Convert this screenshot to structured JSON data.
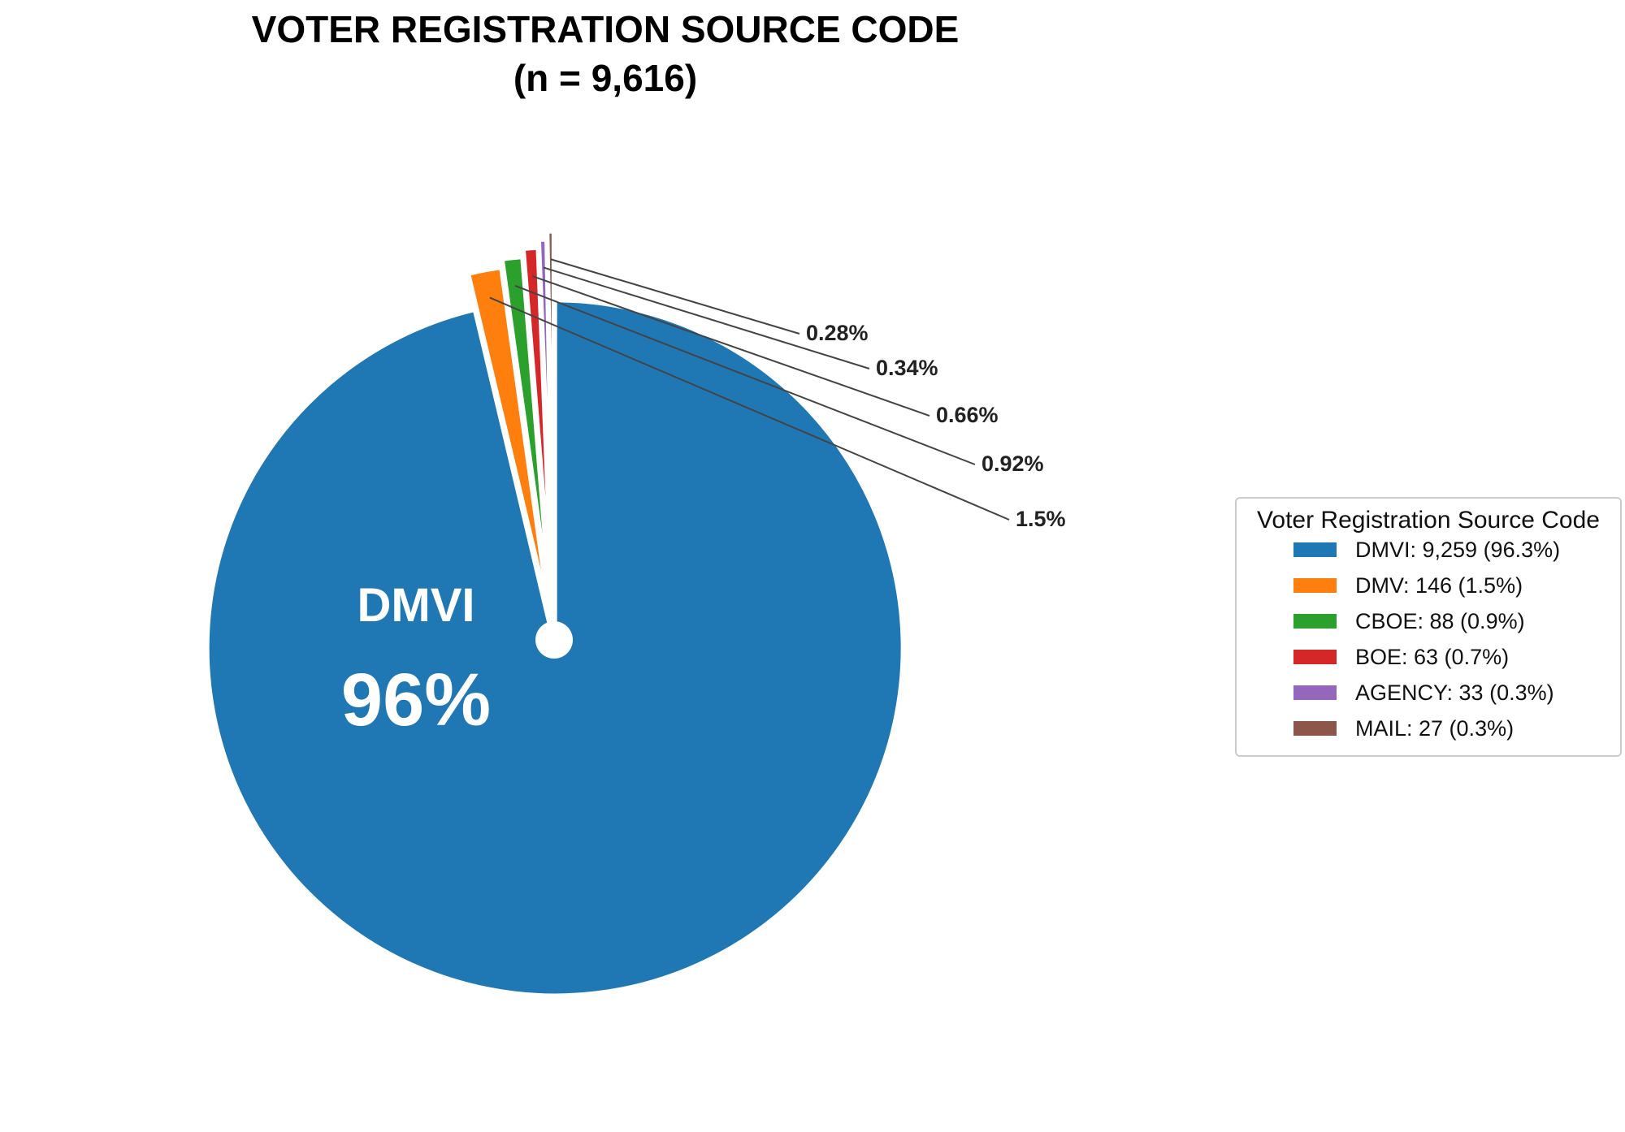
{
  "chart_data": {
    "type": "pie",
    "title": "VOTER REGISTRATION SOURCE CODE",
    "subtitle": "(n = 9,616)",
    "slices": [
      {
        "name": "DMVI",
        "value": 9259,
        "legend_label": "DMVI: 9,259 (96.3%)",
        "color": "#1f77b4",
        "pct_label": "96%"
      },
      {
        "name": "DMV",
        "value": 146,
        "legend_label": "DMV: 146 (1.5%)",
        "color": "#ff7f0e",
        "pct_label": "1.5%"
      },
      {
        "name": "CBOE",
        "value": 88,
        "legend_label": "CBOE: 88 (0.9%)",
        "color": "#2ca02c",
        "pct_label": "0.92%"
      },
      {
        "name": "BOE",
        "value": 63,
        "legend_label": "BOE: 63 (0.7%)",
        "color": "#d62728",
        "pct_label": "0.66%"
      },
      {
        "name": "AGENCY",
        "value": 33,
        "legend_label": "AGENCY: 33 (0.3%)",
        "color": "#9467bd",
        "pct_label": "0.34%"
      },
      {
        "name": "MAIL",
        "value": 27,
        "legend_label": "MAIL: 27 (0.3%)",
        "color": "#8c564b",
        "pct_label": "0.28%"
      }
    ],
    "legend": {
      "title": "Voter Registration Source Code",
      "placement": "right"
    },
    "main_label": "DMVI"
  }
}
